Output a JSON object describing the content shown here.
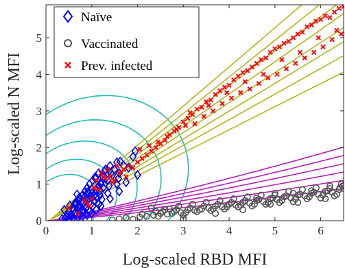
{
  "chart_data": {
    "type": "scatter",
    "xlabel": "Log-scaled RBD MFI",
    "ylabel": "Log-scaled N MFI",
    "xlim": [
      0,
      6.5
    ],
    "ylim": [
      0,
      5.9
    ],
    "xticks": [
      0,
      1,
      2,
      3,
      4,
      5,
      6
    ],
    "yticks": [
      0,
      1,
      2,
      3,
      4,
      5
    ],
    "xtick_labels": [
      "0",
      "1",
      "2",
      "3",
      "4",
      "5",
      "6"
    ],
    "ytick_labels": [
      "0",
      "1",
      "2",
      "3",
      "4",
      "5"
    ],
    "legend_position": "top-left",
    "series": [
      {
        "name": "Naïve",
        "marker": "diamond",
        "color": "#0000ff",
        "x": [
          0.35,
          0.42,
          0.48,
          0.5,
          0.55,
          0.58,
          0.62,
          0.65,
          0.68,
          0.7,
          0.72,
          0.75,
          0.78,
          0.8,
          0.82,
          0.85,
          0.88,
          0.9,
          0.92,
          0.95,
          0.98,
          1.0,
          1.02,
          1.05,
          1.08,
          1.1,
          1.12,
          1.15,
          1.18,
          1.2,
          1.25,
          1.3,
          1.35,
          1.4,
          1.45,
          1.5,
          1.55,
          1.6,
          1.7,
          1.8,
          1.9,
          2.0,
          0.45,
          0.55,
          0.6,
          0.65,
          0.7,
          0.75,
          0.8,
          0.85,
          0.9,
          0.95,
          1.0,
          1.05,
          1.1,
          1.15,
          1.2,
          1.3,
          0.5,
          0.6,
          0.7,
          0.8,
          0.9,
          1.0,
          1.1,
          1.2,
          1.4,
          1.6,
          0.4,
          0.65,
          0.85,
          1.0,
          1.25,
          0.75,
          0.95,
          1.15,
          1.35,
          1.55,
          1.75,
          0.52,
          0.72,
          0.92,
          0.58,
          0.78,
          0.98,
          1.18,
          1.38,
          1.58,
          0.88,
          0.68,
          1.08,
          1.28,
          0.62,
          0.82,
          1.02,
          1.22,
          1.42,
          1.62,
          1.95
        ],
        "y": [
          0.05,
          0.08,
          0.15,
          0.25,
          0.12,
          0.35,
          0.2,
          0.45,
          0.3,
          0.55,
          0.4,
          0.6,
          0.25,
          0.7,
          0.5,
          0.8,
          0.35,
          0.9,
          0.6,
          1.0,
          0.45,
          0.75,
          1.1,
          0.55,
          1.2,
          0.65,
          0.9,
          1.3,
          0.7,
          1.0,
          1.2,
          1.4,
          1.1,
          1.5,
          1.25,
          1.4,
          1.6,
          1.3,
          1.5,
          1.45,
          1.75,
          1.25,
          0.1,
          0.18,
          0.28,
          0.22,
          0.38,
          0.32,
          0.48,
          0.42,
          0.58,
          0.52,
          0.62,
          0.68,
          0.85,
          0.95,
          1.05,
          1.15,
          0.05,
          0.08,
          0.1,
          0.12,
          0.15,
          0.2,
          0.3,
          0.4,
          0.6,
          0.8,
          0.3,
          0.5,
          0.65,
          0.85,
          0.9,
          0.15,
          0.25,
          0.45,
          0.75,
          1.0,
          1.05,
          0.42,
          0.62,
          0.78,
          0.35,
          0.52,
          0.68,
          0.82,
          0.95,
          1.15,
          0.2,
          0.72,
          1.15,
          1.35,
          0.18,
          0.28,
          0.4,
          0.58,
          1.3,
          1.62,
          1.9
        ]
      },
      {
        "name": "Vaccinated",
        "marker": "circle",
        "color": "#555555",
        "x": [
          1.45,
          1.6,
          1.75,
          1.9,
          2.05,
          2.2,
          2.35,
          2.5,
          2.65,
          2.8,
          2.95,
          3.1,
          3.25,
          3.4,
          3.55,
          3.7,
          3.85,
          4.0,
          4.15,
          4.3,
          4.45,
          4.6,
          4.75,
          4.9,
          5.05,
          5.2,
          5.35,
          5.5,
          5.65,
          5.8,
          5.95,
          6.1,
          6.25,
          6.4,
          6.5,
          2.3,
          2.6,
          2.9,
          3.2,
          3.5,
          3.8,
          4.1,
          4.4,
          4.7,
          5.0,
          5.3,
          5.6,
          5.9,
          6.2,
          6.45,
          2.45,
          2.75,
          3.05,
          3.35,
          3.65,
          3.95,
          4.25,
          4.55,
          4.85,
          5.15,
          5.45,
          5.75,
          6.05,
          6.35,
          3.0,
          3.3,
          3.6,
          3.9,
          4.2,
          4.5,
          4.8,
          5.1,
          5.4,
          5.7,
          6.0,
          6.3,
          2.55,
          2.85,
          3.15,
          3.45,
          3.75,
          4.05,
          4.35,
          4.65,
          4.95,
          5.25,
          5.55,
          5.85,
          6.15,
          6.42,
          2.1,
          2.4,
          2.7,
          3.0,
          4.6,
          5.0,
          5.4,
          5.8,
          6.2,
          6.48,
          4.9,
          5.5,
          6.1,
          3.7,
          4.3
        ],
        "y": [
          0.02,
          0.05,
          0.08,
          0.04,
          0.1,
          0.12,
          0.15,
          0.2,
          0.18,
          0.25,
          0.22,
          0.3,
          0.28,
          0.32,
          0.35,
          0.4,
          0.38,
          0.45,
          0.42,
          0.5,
          0.48,
          0.55,
          0.52,
          0.6,
          0.58,
          0.65,
          0.62,
          0.7,
          0.68,
          0.75,
          0.72,
          0.8,
          0.78,
          0.85,
          0.88,
          0.35,
          0.3,
          0.4,
          0.45,
          0.5,
          0.55,
          0.6,
          0.65,
          0.7,
          0.75,
          0.8,
          0.85,
          0.9,
          0.95,
          1.0,
          0.12,
          0.2,
          0.22,
          0.3,
          0.32,
          0.38,
          0.42,
          0.45,
          0.5,
          0.55,
          0.6,
          0.65,
          0.7,
          0.72,
          0.15,
          0.25,
          0.28,
          0.32,
          0.38,
          0.4,
          0.45,
          0.5,
          0.52,
          0.6,
          0.62,
          0.68,
          0.25,
          0.3,
          0.35,
          0.4,
          0.45,
          0.5,
          0.55,
          0.58,
          0.62,
          0.68,
          0.72,
          0.78,
          0.82,
          0.9,
          0.18,
          0.25,
          0.32,
          0.05,
          0.62,
          0.7,
          0.75,
          0.82,
          0.88,
          0.95,
          0.45,
          0.5,
          0.6,
          0.2,
          0.3
        ]
      },
      {
        "name": "Prev. infected",
        "marker": "cross",
        "color": "#ff0000",
        "x": [
          0.5,
          0.7,
          0.85,
          0.9,
          1.0,
          1.05,
          1.1,
          1.2,
          1.25,
          1.3,
          1.4,
          1.5,
          1.6,
          1.7,
          1.8,
          1.9,
          2.0,
          2.1,
          2.2,
          2.3,
          2.4,
          2.5,
          2.6,
          2.7,
          2.8,
          2.9,
          3.0,
          3.1,
          3.2,
          3.3,
          3.4,
          3.5,
          3.6,
          3.7,
          3.8,
          3.9,
          4.0,
          4.1,
          4.2,
          4.3,
          4.4,
          4.5,
          4.6,
          4.7,
          4.8,
          4.9,
          5.0,
          5.1,
          5.2,
          5.3,
          5.4,
          5.5,
          5.6,
          5.7,
          5.8,
          5.9,
          6.0,
          6.1,
          6.2,
          6.3,
          6.4,
          6.5,
          2.05,
          2.25,
          2.45,
          2.65,
          2.85,
          3.05,
          3.25,
          3.45,
          3.65,
          3.85,
          4.05,
          4.25,
          4.45,
          4.65,
          4.85,
          5.05,
          5.25,
          5.45,
          5.65,
          5.85,
          6.05,
          6.25,
          6.45,
          1.15,
          1.35,
          1.55,
          1.75,
          3.15,
          3.55,
          3.95,
          4.35,
          4.75,
          5.15,
          5.55,
          5.95,
          6.35,
          0.95,
          1.45
        ],
        "y": [
          0.35,
          0.2,
          0.55,
          0.45,
          0.6,
          0.9,
          1.1,
          1.3,
          1.2,
          1.15,
          1.2,
          1.1,
          1.3,
          1.4,
          1.5,
          1.45,
          1.6,
          1.7,
          1.8,
          1.9,
          2.0,
          2.1,
          2.2,
          2.35,
          2.45,
          2.55,
          2.7,
          2.8,
          2.9,
          3.05,
          3.1,
          3.25,
          3.3,
          3.45,
          3.55,
          3.65,
          3.7,
          3.85,
          3.95,
          4.05,
          4.1,
          4.2,
          4.3,
          4.4,
          4.45,
          4.6,
          4.7,
          4.75,
          4.85,
          4.9,
          5.0,
          5.1,
          5.15,
          5.3,
          5.35,
          5.45,
          5.5,
          5.6,
          5.55,
          5.7,
          5.8,
          5.85,
          1.95,
          2.05,
          2.15,
          2.3,
          2.5,
          2.6,
          2.65,
          2.85,
          3.0,
          3.2,
          3.35,
          3.5,
          3.6,
          3.75,
          3.9,
          4.0,
          4.15,
          4.3,
          4.45,
          4.6,
          4.75,
          4.95,
          5.1,
          0.85,
          1.4,
          1.5,
          1.2,
          2.95,
          3.15,
          3.5,
          3.8,
          4.0,
          4.4,
          4.6,
          5.0,
          5.2,
          0.4,
          1.05
        ]
      }
    ]
  },
  "colors": {
    "naive_contours": "#1fbdbd",
    "infected_contours": "#b5b515",
    "vaccinated_contours": "#b41fb4"
  }
}
